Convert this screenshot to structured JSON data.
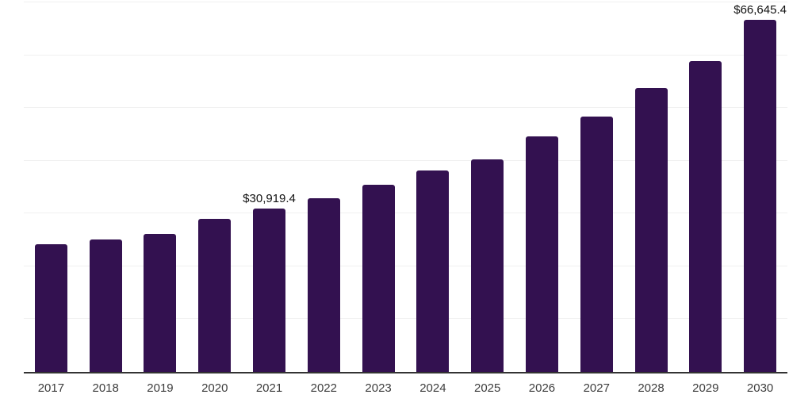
{
  "chart_data": {
    "type": "bar",
    "title": "",
    "xlabel": "",
    "ylabel": "",
    "categories": [
      "2017",
      "2018",
      "2019",
      "2020",
      "2021",
      "2022",
      "2023",
      "2024",
      "2025",
      "2026",
      "2027",
      "2028",
      "2029",
      "2030"
    ],
    "values": [
      24200,
      25100,
      26100,
      29000,
      30919.4,
      32900,
      35400,
      38100,
      40200,
      44600,
      48400,
      53800,
      58900,
      66645.4
    ],
    "data_labels": [
      null,
      null,
      null,
      null,
      "$30,919.4",
      null,
      null,
      null,
      null,
      null,
      null,
      null,
      null,
      "$66,645.4"
    ],
    "ylim": [
      0,
      70000
    ],
    "gridline_step": 10000,
    "grid": "horizontal",
    "legend": "none",
    "y_tick_labels_visible": false,
    "colors": {
      "bar": "#331150",
      "gridline": "#f0f0f0",
      "axis": "#333333",
      "tick_label": "#3d3d3d",
      "data_label": "#111111",
      "background": "#ffffff"
    }
  }
}
